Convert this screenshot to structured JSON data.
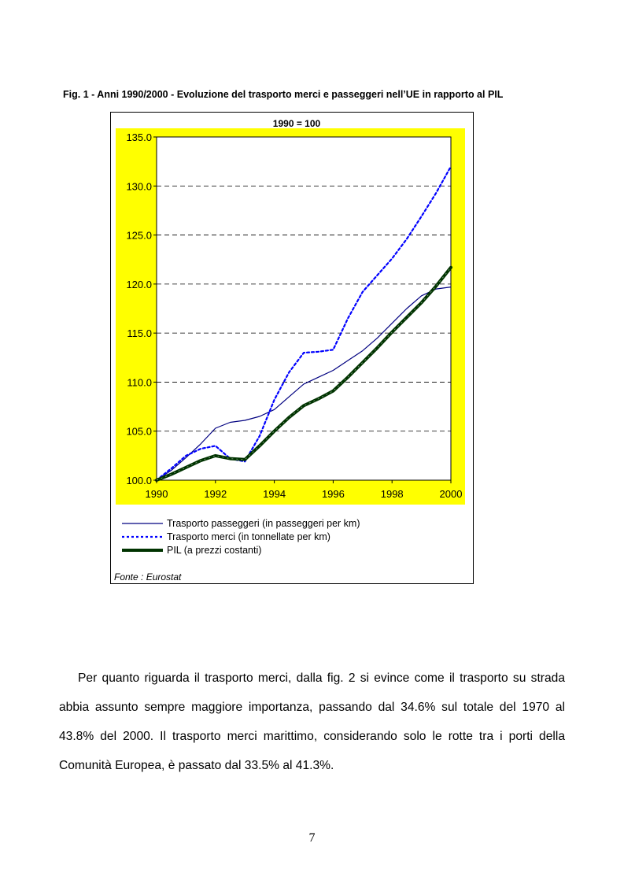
{
  "figure": {
    "caption": "Fig. 1 - Anni 1990/2000 - Evoluzione del trasporto merci e passeggeri nell’UE in rapporto al PIL",
    "source": "Fonte : Eurostat"
  },
  "colors": {
    "plot_background": "#ffff00",
    "passeggeri": "#000080",
    "merci": "#0000ff",
    "pil": "#003300",
    "gridline": "#000000"
  },
  "chart_data": {
    "type": "line",
    "title": "1990 = 100",
    "xlabel": "",
    "ylabel": "",
    "xlim": [
      1990,
      2000
    ],
    "ylim": [
      100,
      135
    ],
    "x_ticks": [
      1990,
      1992,
      1994,
      1996,
      1998,
      2000
    ],
    "y_ticks": [
      "100.0",
      "105.0",
      "110.0",
      "115.0",
      "120.0",
      "125.0",
      "130.0",
      "135.0"
    ],
    "grid": "horizontal dashed",
    "legend_position": "bottom",
    "series": [
      {
        "name": "Trasporto passeggeri (in passeggeri per km)",
        "style": "solid thin",
        "x": [
          1990,
          1990.5,
          1991,
          1991.5,
          1992,
          1992.5,
          1993,
          1993.5,
          1994,
          1994.5,
          1995,
          1995.5,
          1996,
          1996.5,
          1997,
          1997.5,
          1998,
          1998.5,
          1999,
          1999.5,
          2000
        ],
        "values": [
          100.0,
          101.0,
          102.3,
          103.7,
          105.3,
          105.9,
          106.1,
          106.5,
          107.2,
          108.5,
          109.8,
          110.5,
          111.2,
          112.2,
          113.2,
          114.5,
          116.0,
          117.5,
          118.8,
          119.5,
          119.7
        ]
      },
      {
        "name": "Trasporto merci (in tonnellate per km)",
        "style": "dotted",
        "x": [
          1990,
          1990.5,
          1991,
          1991.5,
          1992,
          1992.5,
          1993,
          1993.5,
          1994,
          1994.5,
          1995,
          1995.5,
          1996,
          1996.5,
          1997,
          1997.5,
          1998,
          1998.5,
          1999,
          1999.5,
          2000
        ],
        "values": [
          100.0,
          101.2,
          102.5,
          103.2,
          103.5,
          102.2,
          101.9,
          104.5,
          108.2,
          111.0,
          113.0,
          113.1,
          113.3,
          116.5,
          119.2,
          120.9,
          122.6,
          124.6,
          126.9,
          129.3,
          132.0
        ]
      },
      {
        "name": "PIL (a prezzi costanti)",
        "style": "solid thick",
        "x": [
          1990,
          1990.5,
          1991,
          1991.5,
          1992,
          1992.5,
          1993,
          1993.5,
          1994,
          1994.5,
          1995,
          1995.5,
          1996,
          1996.5,
          1997,
          1997.5,
          1998,
          1998.5,
          1999,
          1999.5,
          2000
        ],
        "values": [
          100.0,
          100.6,
          101.3,
          102.0,
          102.5,
          102.2,
          102.1,
          103.5,
          105.0,
          106.4,
          107.6,
          108.3,
          109.1,
          110.5,
          112.0,
          113.5,
          115.1,
          116.6,
          118.1,
          119.8,
          121.7
        ]
      }
    ]
  },
  "body": {
    "paragraph": "Per quanto riguarda il trasporto merci, dalla fig. 2 si evince come il trasporto su strada abbia assunto sempre maggiore importanza, passando dal 34.6% sul totale del 1970 al 43.8% del 2000. Il trasporto merci marittimo, considerando solo le rotte tra i porti della Comunità Europea, è passato dal 33.5% al 41.3%.",
    "page_number": "7"
  }
}
